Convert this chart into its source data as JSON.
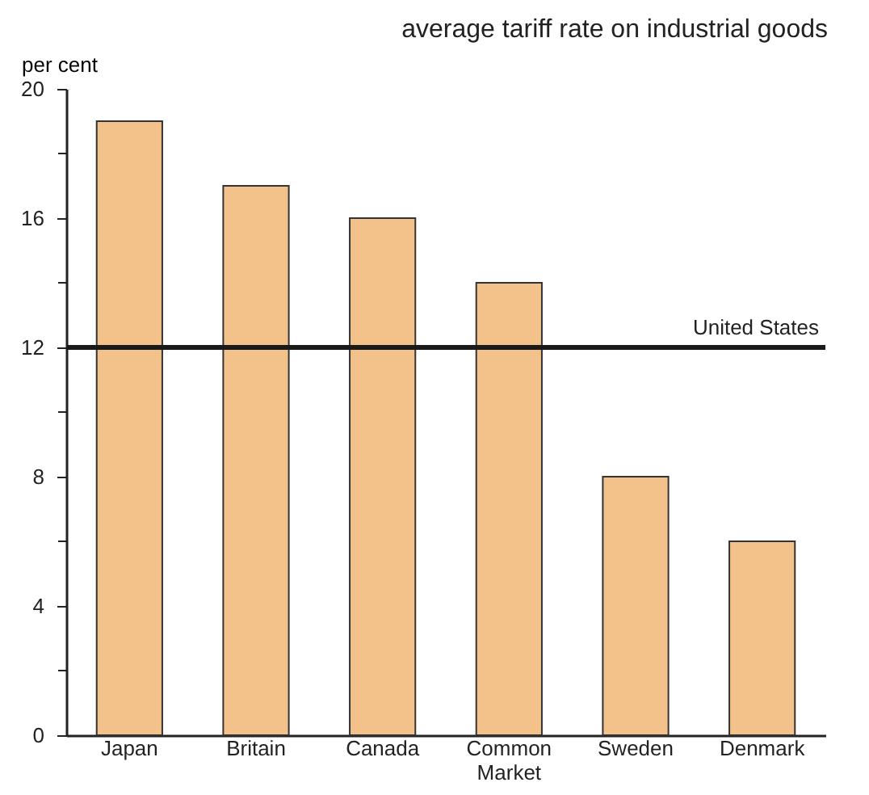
{
  "chart_data": {
    "type": "bar",
    "title": "average tariff rate on industrial goods",
    "ylabel": "per cent",
    "categories": [
      "Japan",
      "Britain",
      "Canada",
      "Common Market",
      "Sweden",
      "Denmark"
    ],
    "values": [
      19,
      17,
      16,
      14,
      8,
      6
    ],
    "color": "#f2c28a",
    "ylim": [
      0,
      20
    ],
    "yticks": [
      0,
      {
        "value": 2,
        "label": null
      },
      4,
      {
        "value": 6,
        "label": null
      },
      8,
      {
        "value": 10,
        "label": null
      },
      12,
      {
        "value": 14,
        "label": null
      },
      16,
      {
        "value": 18,
        "label": null
      },
      20
    ],
    "ref_lines": [
      {
        "axis": "y",
        "value": 12,
        "label": "United States",
        "color": "#1a1a1a"
      }
    ],
    "grid": false
  }
}
